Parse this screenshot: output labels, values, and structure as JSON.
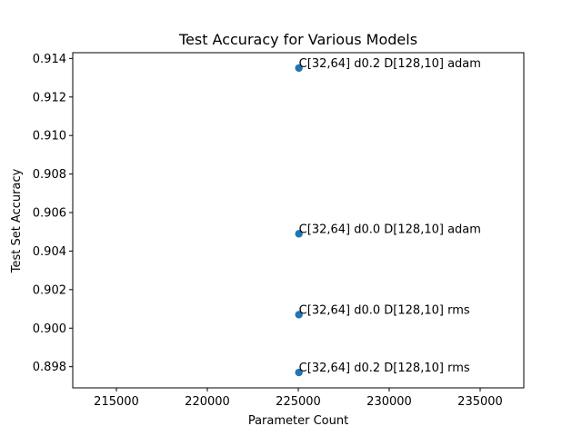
{
  "chart_data": {
    "type": "scatter",
    "title": "Test Accuracy for Various Models",
    "xlabel": "Parameter Count",
    "ylabel": "Test Set Accuracy",
    "xlim": [
      212600,
      237400
    ],
    "ylim": [
      0.8969,
      0.9143
    ],
    "xticks": [
      215000,
      220000,
      225000,
      230000,
      235000
    ],
    "yticks": [
      0.898,
      0.9,
      0.902,
      0.904,
      0.906,
      0.908,
      0.91,
      0.912,
      0.914
    ],
    "xtick_labels": [
      "215000",
      "220000",
      "225000",
      "230000",
      "235000"
    ],
    "ytick_labels": [
      "0.898",
      "0.900",
      "0.902",
      "0.904",
      "0.906",
      "0.908",
      "0.910",
      "0.912",
      "0.914"
    ],
    "grid": false,
    "marker_color": "#1f77b4",
    "points": [
      {
        "x": 225034,
        "y": 0.9135,
        "label": "C[32,64] d0.2 D[128,10] adam"
      },
      {
        "x": 225034,
        "y": 0.9049,
        "label": "C[32,64] d0.0 D[128,10] adam"
      },
      {
        "x": 225034,
        "y": 0.9007,
        "label": "C[32,64] d0.0 D[128,10] rms"
      },
      {
        "x": 225034,
        "y": 0.8977,
        "label": "C[32,64] d0.2 D[128,10] rms"
      }
    ]
  }
}
